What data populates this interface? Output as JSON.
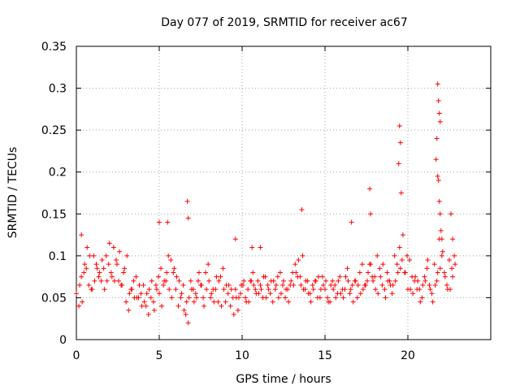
{
  "chart_data": {
    "type": "scatter",
    "title": "Day 077 of 2019, SRMTID for receiver ac67",
    "xlabel": "GPS time / hours",
    "ylabel": "SRMTID / TECUs",
    "xlim": [
      0,
      25
    ],
    "ylim": [
      0,
      0.35
    ],
    "x_ticks": [
      0,
      5,
      10,
      15,
      20
    ],
    "x_tick_labels": [
      "0",
      "5",
      "10",
      "15",
      "20"
    ],
    "y_ticks": [
      0,
      0.05,
      0.1,
      0.15,
      0.2,
      0.25,
      0.3,
      0.35
    ],
    "y_tick_labels": [
      "0",
      "0.05",
      "0.1",
      "0.15",
      "0.2",
      "0.25",
      "0.3",
      "0.35"
    ],
    "grid": true,
    "marker": "+",
    "color": "#ff0000",
    "series": [
      {
        "name": "SRMTID",
        "x": [
          0.0,
          0.3,
          0.6,
          0.9,
          1.2,
          1.5,
          1.8,
          2.1,
          2.4,
          2.7,
          3.0,
          3.3,
          3.6,
          3.9,
          4.2,
          4.5,
          4.8,
          5.1,
          5.4,
          5.7,
          6.0,
          6.3,
          6.6,
          6.9,
          7.2,
          7.5,
          7.8,
          8.1,
          8.4,
          8.7,
          9.0,
          9.3,
          9.6,
          9.9,
          10.2,
          10.5,
          10.8,
          11.1,
          11.4,
          11.7,
          12.0,
          12.3,
          12.6,
          12.9,
          13.2,
          13.5,
          13.8,
          14.1,
          14.4,
          14.7,
          15.0,
          15.3,
          15.6,
          15.9,
          16.2,
          16.5,
          16.8,
          17.1,
          17.4,
          17.7,
          18.0,
          18.3,
          18.6,
          18.9,
          19.2,
          19.5,
          19.8,
          20.1,
          20.4,
          20.7,
          21.0,
          21.3,
          21.6,
          21.9,
          22.2,
          22.5,
          22.8,
          0.15,
          0.45,
          0.75,
          1.05,
          1.35,
          1.65,
          1.95,
          2.25,
          2.55,
          2.85,
          3.15,
          3.45,
          3.75,
          4.05,
          4.35,
          4.65,
          4.95,
          5.25,
          5.55,
          5.85,
          6.15,
          6.45,
          6.75,
          7.05,
          7.35,
          7.65,
          7.95,
          8.25,
          8.55,
          8.85,
          9.15,
          9.45,
          9.75,
          10.05,
          10.35,
          10.65,
          10.95,
          11.25,
          11.55,
          11.85,
          12.15,
          12.45,
          12.75,
          13.05,
          13.35,
          13.65,
          13.95,
          14.25,
          14.55,
          14.85,
          15.15,
          15.45,
          15.75,
          16.05,
          16.35,
          16.65,
          16.95,
          17.25,
          17.55,
          17.85,
          18.15,
          18.45,
          18.75,
          19.05,
          19.35,
          19.65,
          19.95,
          20.25,
          20.55,
          20.85,
          21.15,
          21.45,
          21.75,
          22.05,
          22.35,
          22.65,
          0.2,
          0.5,
          0.8,
          1.1,
          1.4,
          1.7,
          2.0,
          2.3,
          2.6,
          2.9,
          3.2,
          3.5,
          3.8,
          4.1,
          4.4,
          4.7,
          5.0,
          5.3,
          5.6,
          5.9,
          6.2,
          6.5,
          6.8,
          7.1,
          7.4,
          7.7,
          8.0,
          8.3,
          8.6,
          8.9,
          9.2,
          9.5,
          9.8,
          10.1,
          10.4,
          10.7,
          11.0,
          11.3,
          11.6,
          11.9,
          12.2,
          12.5,
          12.8,
          13.1,
          13.4,
          13.7,
          14.0,
          14.3,
          14.6,
          14.9,
          15.2,
          15.5,
          15.8,
          16.1,
          16.4,
          16.7,
          17.0,
          17.3,
          17.6,
          17.9,
          18.2,
          18.5,
          18.8,
          19.1,
          19.4,
          19.7,
          20.0,
          20.3,
          20.6,
          20.9,
          21.2,
          21.5,
          21.8,
          22.1,
          22.4,
          22.7,
          0.35,
          0.65,
          0.95,
          1.25,
          1.55,
          1.85,
          2.15,
          2.45,
          2.75,
          3.05,
          3.35,
          3.65,
          3.95,
          4.25,
          4.55,
          4.85,
          5.15,
          5.45,
          5.75,
          6.05,
          6.35,
          6.65,
          6.95,
          7.25,
          7.55,
          7.85,
          8.15,
          8.45,
          8.75,
          9.05,
          9.35,
          9.65,
          9.95,
          10.25,
          10.55,
          10.85,
          11.15,
          11.45,
          11.75,
          12.05,
          12.35,
          12.65,
          12.95,
          13.25,
          13.55,
          13.85,
          14.15,
          14.45,
          14.75,
          15.05,
          15.35,
          15.65,
          15.95,
          16.25,
          16.55,
          16.85,
          17.15,
          17.45,
          17.75,
          18.05,
          18.35,
          18.65,
          18.95,
          19.25,
          19.55,
          19.85,
          20.15,
          20.45,
          20.75,
          21.05,
          21.35,
          21.65,
          21.95,
          22.25,
          22.55,
          22.85,
          0.3,
          6.7,
          6.75,
          13.6,
          17.7,
          17.75,
          19.5,
          19.55,
          19.45,
          19.6,
          21.8,
          21.85,
          21.9,
          21.95,
          21.75,
          21.7,
          21.8,
          21.85,
          21.9,
          21.95,
          22.0,
          22.05,
          22.6,
          22.7,
          16.6,
          5.0,
          5.5,
          9.6,
          10.6,
          11.1
        ],
        "y": [
          0.055,
          0.075,
          0.085,
          0.06,
          0.09,
          0.07,
          0.1,
          0.08,
          0.095,
          0.065,
          0.045,
          0.06,
          0.075,
          0.055,
          0.04,
          0.05,
          0.065,
          0.085,
          0.07,
          0.095,
          0.06,
          0.05,
          0.03,
          0.07,
          0.055,
          0.065,
          0.08,
          0.05,
          0.06,
          0.075,
          0.045,
          0.04,
          0.06,
          0.055,
          0.05,
          0.07,
          0.06,
          0.065,
          0.075,
          0.055,
          0.06,
          0.08,
          0.05,
          0.065,
          0.09,
          0.075,
          0.06,
          0.055,
          0.07,
          0.05,
          0.06,
          0.045,
          0.065,
          0.075,
          0.06,
          0.055,
          0.07,
          0.08,
          0.065,
          0.09,
          0.075,
          0.085,
          0.06,
          0.07,
          0.1,
          0.11,
          0.08,
          0.095,
          0.07,
          0.06,
          0.075,
          0.065,
          0.09,
          0.12,
          0.08,
          0.095,
          0.1,
          0.04,
          0.08,
          0.065,
          0.1,
          0.075,
          0.085,
          0.09,
          0.11,
          0.07,
          0.08,
          0.035,
          0.07,
          0.05,
          0.065,
          0.03,
          0.045,
          0.075,
          0.065,
          0.1,
          0.08,
          0.04,
          0.065,
          0.02,
          0.06,
          0.07,
          0.05,
          0.09,
          0.06,
          0.045,
          0.085,
          0.055,
          0.05,
          0.035,
          0.065,
          0.06,
          0.08,
          0.07,
          0.05,
          0.065,
          0.045,
          0.075,
          0.065,
          0.06,
          0.08,
          0.075,
          0.1,
          0.07,
          0.065,
          0.05,
          0.075,
          0.05,
          0.07,
          0.055,
          0.06,
          0.085,
          0.065,
          0.05,
          0.09,
          0.07,
          0.075,
          0.1,
          0.065,
          0.08,
          0.055,
          0.09,
          0.095,
          0.1,
          0.075,
          0.06,
          0.05,
          0.085,
          0.055,
          0.07,
          0.1,
          0.065,
          0.085,
          0.065,
          0.09,
          0.1,
          0.07,
          0.08,
          0.06,
          0.115,
          0.07,
          0.105,
          0.085,
          0.055,
          0.05,
          0.065,
          0.045,
          0.06,
          0.035,
          0.055,
          0.07,
          0.06,
          0.085,
          0.07,
          0.035,
          0.05,
          0.045,
          0.08,
          0.04,
          0.07,
          0.045,
          0.07,
          0.06,
          0.065,
          0.03,
          0.05,
          0.07,
          0.045,
          0.065,
          0.055,
          0.075,
          0.06,
          0.07,
          0.05,
          0.07,
          0.045,
          0.065,
          0.095,
          0.06,
          0.055,
          0.06,
          0.075,
          0.065,
          0.045,
          0.06,
          0.07,
          0.05,
          0.07,
          0.045,
          0.065,
          0.06,
          0.08,
          0.07,
          0.055,
          0.09,
          0.07,
          0.065,
          0.08,
          0.125,
          0.06,
          0.055,
          0.07,
          0.065,
          0.095,
          0.045,
          0.08,
          0.105,
          0.06,
          0.075,
          0.045,
          0.11,
          0.06,
          0.085,
          0.095,
          0.07,
          0.075,
          0.09,
          0.065,
          0.1,
          0.06,
          0.05,
          0.04,
          0.055,
          0.07,
          0.06,
          0.04,
          0.08,
          0.05,
          0.075,
          0.055,
          0.045,
          0.06,
          0.05,
          0.065,
          0.06,
          0.055,
          0.075,
          0.04,
          0.065,
          0.06,
          0.05,
          0.065,
          0.045,
          0.07,
          0.055,
          0.06,
          0.05,
          0.07,
          0.065,
          0.055,
          0.06,
          0.07,
          0.08,
          0.065,
          0.07,
          0.045,
          0.07,
          0.06,
          0.07,
          0.065,
          0.05,
          0.055,
          0.075,
          0.06,
          0.07,
          0.055,
          0.065,
          0.09,
          0.06,
          0.075,
          0.05,
          0.065,
          0.07,
          0.085,
          0.08,
          0.06,
          0.075,
          0.045,
          0.07,
          0.06,
          0.065,
          0.085,
          0.075,
          0.06,
          0.09,
          0.125,
          0.165,
          0.145,
          0.155,
          0.18,
          0.15,
          0.255,
          0.235,
          0.21,
          0.175,
          0.305,
          0.285,
          0.27,
          0.26,
          0.24,
          0.215,
          0.195,
          0.19,
          0.165,
          0.15,
          0.13,
          0.12,
          0.15,
          0.12,
          0.14,
          0.14,
          0.14,
          0.12,
          0.11,
          0.11
        ]
      }
    ]
  }
}
